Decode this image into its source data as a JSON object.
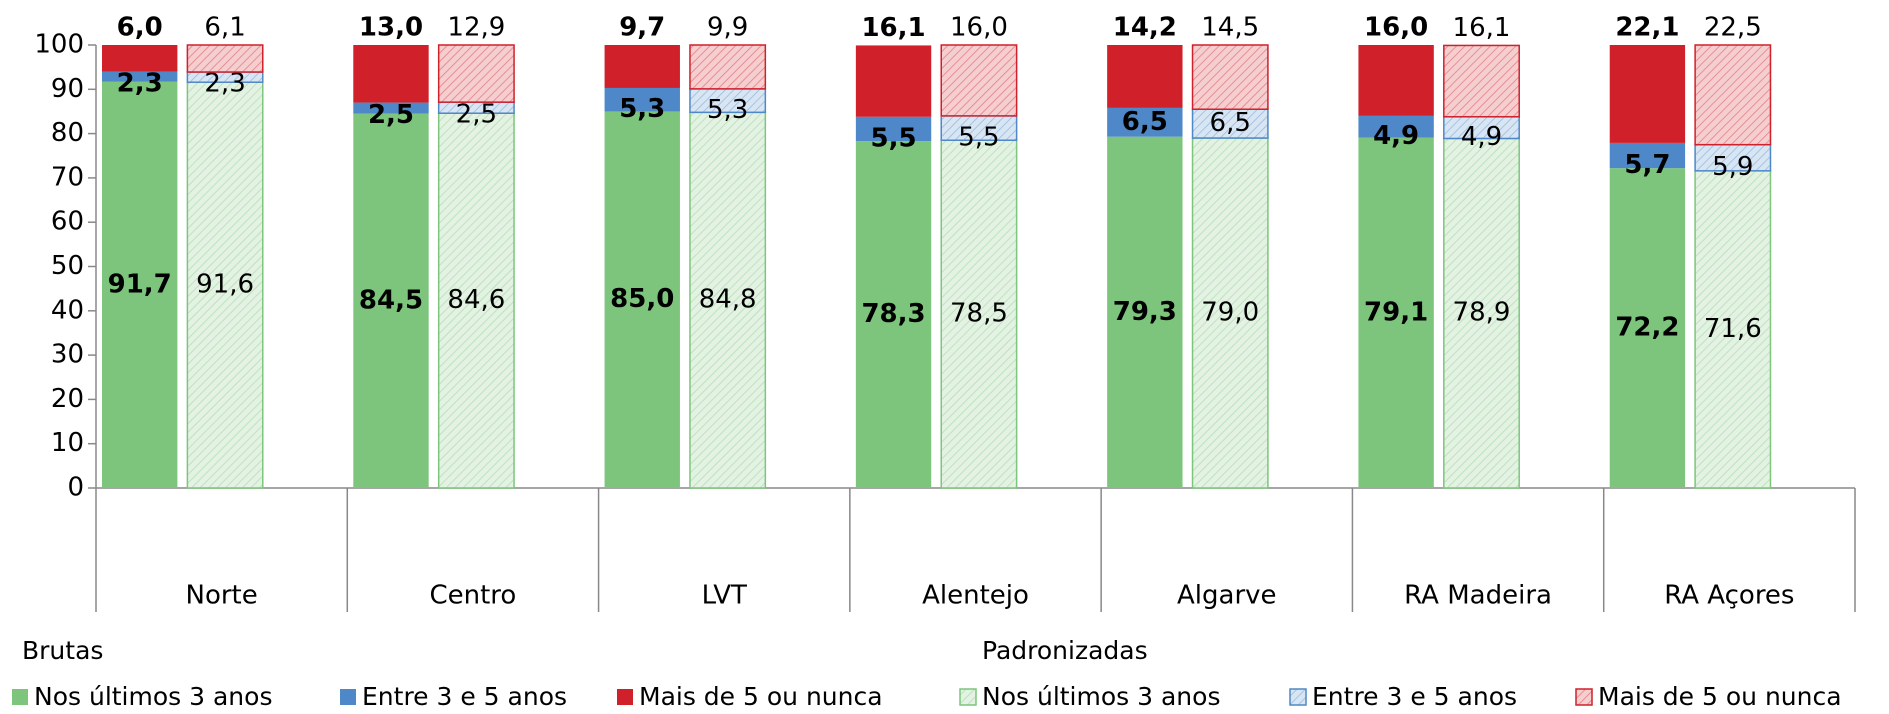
{
  "chart_data": {
    "type": "bar",
    "stacked": true,
    "categories": [
      "Norte",
      "Centro",
      "LVT",
      "Alentejo",
      "Algarve",
      "RA Madeira",
      "RA Açores"
    ],
    "ylim": [
      0,
      100
    ],
    "yticks": [
      0,
      10,
      20,
      30,
      40,
      50,
      60,
      70,
      80,
      90,
      100
    ],
    "grid": false,
    "legend": "bottom",
    "groups": [
      {
        "name": "Brutas",
        "hatch": false,
        "series": [
          {
            "name": "Nos últimos 3 anos",
            "color": "#7dc57d",
            "values": [
              91.7,
              84.5,
              85.0,
              78.3,
              79.3,
              79.1,
              72.2
            ],
            "value_labels": [
              "91,7",
              "84,5",
              "85,0",
              "78,3",
              "79,3",
              "79,1",
              "72,2"
            ]
          },
          {
            "name": "Entre 3 e 5 anos",
            "color": "#4f88c8",
            "values": [
              2.3,
              2.5,
              5.3,
              5.5,
              6.5,
              4.9,
              5.7
            ],
            "value_labels": [
              "2,3",
              "2,5",
              "5,3",
              "5,5",
              "6,5",
              "4,9",
              "5,7"
            ]
          },
          {
            "name": "Mais de 5 ou nunca",
            "color": "#d0202a",
            "values": [
              6.0,
              13.0,
              9.7,
              16.1,
              14.2,
              16.0,
              22.1
            ],
            "value_labels": [
              "6,0",
              "13,0",
              "9,7",
              "16,1",
              "14,2",
              "16,0",
              "22,1"
            ]
          }
        ]
      },
      {
        "name": "Padronizadas",
        "hatch": true,
        "series": [
          {
            "name": "Nos últimos 3 anos",
            "color": "#7dc57d",
            "values": [
              91.6,
              84.6,
              84.8,
              78.5,
              79.0,
              78.9,
              71.6
            ],
            "value_labels": [
              "91,6",
              "84,6",
              "84,8",
              "78,5",
              "79,0",
              "78,9",
              "71,6"
            ]
          },
          {
            "name": "Entre 3 e 5 anos",
            "color": "#4f88c8",
            "values": [
              2.3,
              2.5,
              5.3,
              5.5,
              6.5,
              4.9,
              5.9
            ],
            "value_labels": [
              "2,3",
              "2,5",
              "5,3",
              "5,5",
              "6,5",
              "4,9",
              "5,9"
            ]
          },
          {
            "name": "Mais de 5 ou nunca",
            "color": "#d0202a",
            "values": [
              6.1,
              12.9,
              9.9,
              16.0,
              14.5,
              16.1,
              22.5
            ],
            "value_labels": [
              "6,1",
              "12,9",
              "9,9",
              "16,0",
              "14,5",
              "16,1",
              "22,5"
            ]
          }
        ]
      }
    ]
  }
}
